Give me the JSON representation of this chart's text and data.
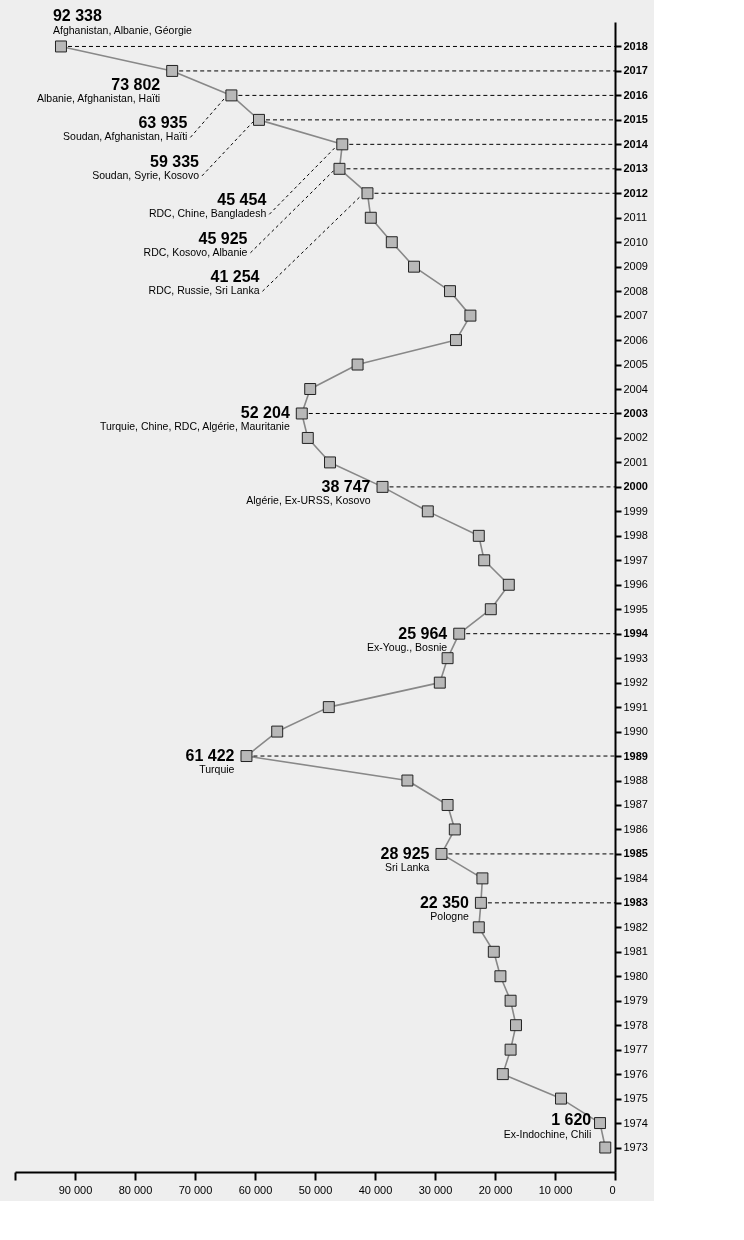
{
  "chart_data": {
    "type": "line",
    "orientation": "horizontal",
    "marker": "square",
    "grid": false,
    "categories": [
      "2018",
      "2017",
      "2016",
      "2015",
      "2014",
      "2013",
      "2012",
      "2011",
      "2010",
      "2009",
      "2008",
      "2007",
      "2006",
      "2005",
      "2004",
      "2003",
      "2002",
      "2001",
      "2000",
      "1999",
      "1998",
      "1997",
      "1996",
      "1995",
      "1994",
      "1993",
      "1992",
      "1991",
      "1990",
      "1989",
      "1988",
      "1987",
      "1986",
      "1985",
      "1984",
      "1983",
      "1982",
      "1981",
      "1980",
      "1979",
      "1978",
      "1977",
      "1976",
      "1975",
      "1974",
      "1973"
    ],
    "series": [
      {
        "color": "#888888",
        "values": [
          92338,
          73802,
          63935,
          59335,
          45454,
          45925,
          41254,
          40700,
          37200,
          33500,
          27500,
          24100,
          26500,
          42900,
          50800,
          52204,
          51200,
          47500,
          38747,
          31200,
          22700,
          21800,
          17700,
          20700,
          25964,
          27900,
          29200,
          47700,
          56300,
          61422,
          34600,
          27900,
          26700,
          28925,
          22100,
          22350,
          22700,
          20200,
          19100,
          17400,
          16500,
          17400,
          18700,
          9000,
          2500,
          1620
        ],
        "value_labels": [
          "92 338",
          "73 802",
          "63 935",
          "59 335",
          "45 454",
          "45 925",
          "41 254",
          null,
          null,
          null,
          null,
          null,
          null,
          null,
          null,
          "52 204",
          null,
          null,
          "38 747",
          null,
          null,
          null,
          null,
          null,
          "25 964",
          null,
          null,
          null,
          null,
          "61 422",
          null,
          null,
          null,
          "28 925",
          null,
          "22 350",
          null,
          null,
          null,
          null,
          null,
          null,
          null,
          null,
          null,
          "1 620"
        ]
      }
    ],
    "xlim": [
      100000,
      0
    ],
    "xticks": [
      {
        "value": 100000,
        "label": null
      },
      {
        "value": 90000,
        "label": "90 000"
      },
      {
        "value": 80000,
        "label": "80 000"
      },
      {
        "value": 70000,
        "label": "70 000"
      },
      {
        "value": 60000,
        "label": "60 000"
      },
      {
        "value": 50000,
        "label": "50 000"
      },
      {
        "value": 40000,
        "label": "40 000"
      },
      {
        "value": 30000,
        "label": "30 000"
      },
      {
        "value": 20000,
        "label": "20 000"
      },
      {
        "value": 10000,
        "label": "10 000"
      },
      0
    ],
    "annotations": [
      {
        "text": "Afghanistan, Albanie, Géorgie",
        "x": 92338,
        "y": "2018"
      },
      {
        "text": "Albanie, Afghanistan, Haïti",
        "x": 73802,
        "y": "2017"
      },
      {
        "text": "Soudan, Afghanistan, Haïti",
        "x": 63935,
        "y": "2016"
      },
      {
        "text": "Soudan, Syrie, Kosovo",
        "x": 59335,
        "y": "2015"
      },
      {
        "text": "RDC, Chine, Bangladesh",
        "x": 45454,
        "y": "2014"
      },
      {
        "text": "RDC, Kosovo, Albanie",
        "x": 45925,
        "y": "2013"
      },
      {
        "text": "RDC, Russie, Sri Lanka",
        "x": 41254,
        "y": "2012"
      },
      {
        "text": "Turquie, Chine, RDC, Algérie, Mauritanie",
        "x": 52204,
        "y": "2003"
      },
      {
        "text": "Algérie, Ex-URSS, Kosovo",
        "x": 38747,
        "y": "2000"
      },
      {
        "text": "Ex-Youg., Bosnie",
        "x": 25964,
        "y": "1994"
      },
      {
        "text": "Turquie",
        "x": 61422,
        "y": "1989"
      },
      {
        "text": "Sri Lanka",
        "x": 28925,
        "y": "1985"
      },
      {
        "text": "Pologne",
        "x": 22350,
        "y": "1983"
      },
      {
        "text": "Ex-Indochine, Chili",
        "x": 1620,
        "y": "1973"
      }
    ],
    "ref_lines": [
      {
        "axis": "y",
        "value": "2018",
        "line_style": "dashed"
      },
      {
        "axis": "y",
        "value": "2017",
        "line_style": "dashed"
      },
      {
        "axis": "y",
        "value": "2016",
        "line_style": "dashed"
      },
      {
        "axis": "y",
        "value": "2015",
        "line_style": "dashed"
      },
      {
        "axis": "y",
        "value": "2014",
        "line_style": "dashed"
      },
      {
        "axis": "y",
        "value": "2013",
        "line_style": "dashed"
      },
      {
        "axis": "y",
        "value": "2012",
        "line_style": "dashed"
      },
      {
        "axis": "y",
        "value": "2003",
        "line_style": "dashed"
      },
      {
        "axis": "y",
        "value": "2000",
        "line_style": "dashed"
      },
      {
        "axis": "y",
        "value": "1994",
        "line_style": "dashed"
      },
      {
        "axis": "y",
        "value": "1989",
        "line_style": "dashed"
      },
      {
        "axis": "y",
        "value": "1985",
        "line_style": "dashed"
      },
      {
        "axis": "y",
        "value": "1983",
        "line_style": "dashed"
      }
    ]
  }
}
